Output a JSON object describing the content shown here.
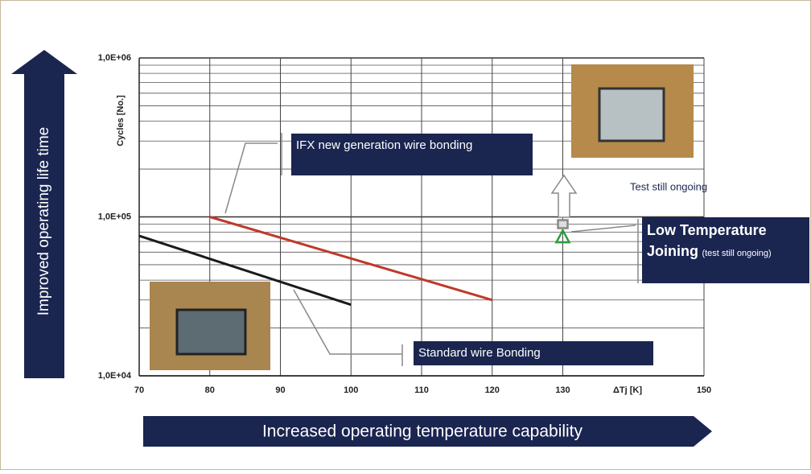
{
  "chart_data": {
    "type": "line",
    "y_label": "Cycles [No.]",
    "x_label": "ΔTj [K]",
    "y_arrow_label": "Improved operating life time",
    "x_arrow_label": "Increased operating temperature capability",
    "log_y": true,
    "grid": true,
    "xlim": [
      70,
      150
    ],
    "xticks": [
      70,
      80,
      90,
      100,
      110,
      120,
      130,
      150
    ],
    "ylim": [
      10000,
      1000000
    ],
    "yticks": [
      {
        "value": 10000,
        "label": "1,0E+04"
      },
      {
        "value": 100000,
        "label": "1,0E+05"
      },
      {
        "value": 1000000,
        "label": "1,0E+06"
      }
    ],
    "series": [
      {
        "name": "Standard wire Bonding",
        "color": "#1a1a1a",
        "marker": "none",
        "x": [
          70,
          100
        ],
        "values": [
          76000,
          28000
        ]
      },
      {
        "name": "IFX new generation wire bonding",
        "color": "#c0392b",
        "marker": "none",
        "x": [
          80,
          120
        ],
        "values": [
          100000,
          30000
        ]
      },
      {
        "name": "Low Temperature Joining",
        "note": "(test still ongoing)",
        "color": "#2e9e3e",
        "marker": "triangle",
        "x": [
          130
        ],
        "values": [
          75000
        ]
      },
      {
        "name": "Test still ongoing",
        "color": "#888888",
        "marker": "square",
        "x": [
          130
        ],
        "values": [
          90000
        ]
      }
    ]
  }
}
